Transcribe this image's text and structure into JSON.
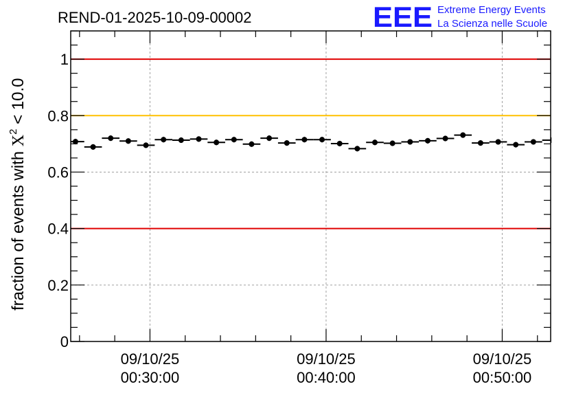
{
  "header": {
    "run_title": "REND-01-2025-10-09-00002",
    "logo_text": "EEE",
    "logo_line1": "Extreme Energy Events",
    "logo_line2": "La Scienza nelle Scuole"
  },
  "colors": {
    "logo": "#1a1aff",
    "red_line": "#e00000",
    "yellow_line": "#ffc000",
    "grid": "#a0a0a0",
    "points": "#000000"
  },
  "chart_data": {
    "type": "scatter",
    "ylabel_prefix": "fraction of events with ",
    "ylabel_symbol": "X",
    "ylabel_sup": "2",
    "ylabel_suffix": " < 10.0",
    "ylim": [
      0,
      1.1
    ],
    "yticks": [
      "0",
      "0.2",
      "0.4",
      "0.6",
      "0.8",
      "1"
    ],
    "ytick_values": [
      0,
      0.2,
      0.4,
      0.6,
      0.8,
      1.0
    ],
    "xlim_minutes": [
      25.5,
      52.75
    ],
    "xticks": [
      {
        "minute": 30,
        "date": "09/10/25",
        "time": "00:30:00"
      },
      {
        "minute": 40,
        "date": "09/10/25",
        "time": "00:40:00"
      },
      {
        "minute": 50,
        "date": "09/10/25",
        "time": "00:50:00"
      }
    ],
    "reference_lines": [
      {
        "y": 1.0,
        "color": "#e00000"
      },
      {
        "y": 0.8,
        "color": "#ffc000"
      },
      {
        "y": 0.4,
        "color": "#e00000"
      }
    ],
    "bin_width_minutes": 1,
    "grid": true,
    "series": [
      {
        "name": "fraction",
        "x_minutes": [
          25.77,
          26.77,
          27.77,
          28.77,
          29.77,
          30.77,
          31.77,
          32.77,
          33.77,
          34.77,
          35.77,
          36.77,
          37.77,
          38.77,
          39.77,
          40.77,
          41.77,
          42.77,
          43.77,
          44.77,
          45.77,
          46.77,
          47.77,
          48.77,
          49.77,
          50.77,
          51.77,
          52.77
        ],
        "values": [
          0.708,
          0.689,
          0.72,
          0.71,
          0.695,
          0.715,
          0.713,
          0.717,
          0.705,
          0.715,
          0.699,
          0.72,
          0.703,
          0.715,
          0.715,
          0.701,
          0.683,
          0.705,
          0.702,
          0.707,
          0.711,
          0.719,
          0.731,
          0.703,
          0.707,
          0.697,
          0.707,
          0.713
        ]
      }
    ]
  }
}
